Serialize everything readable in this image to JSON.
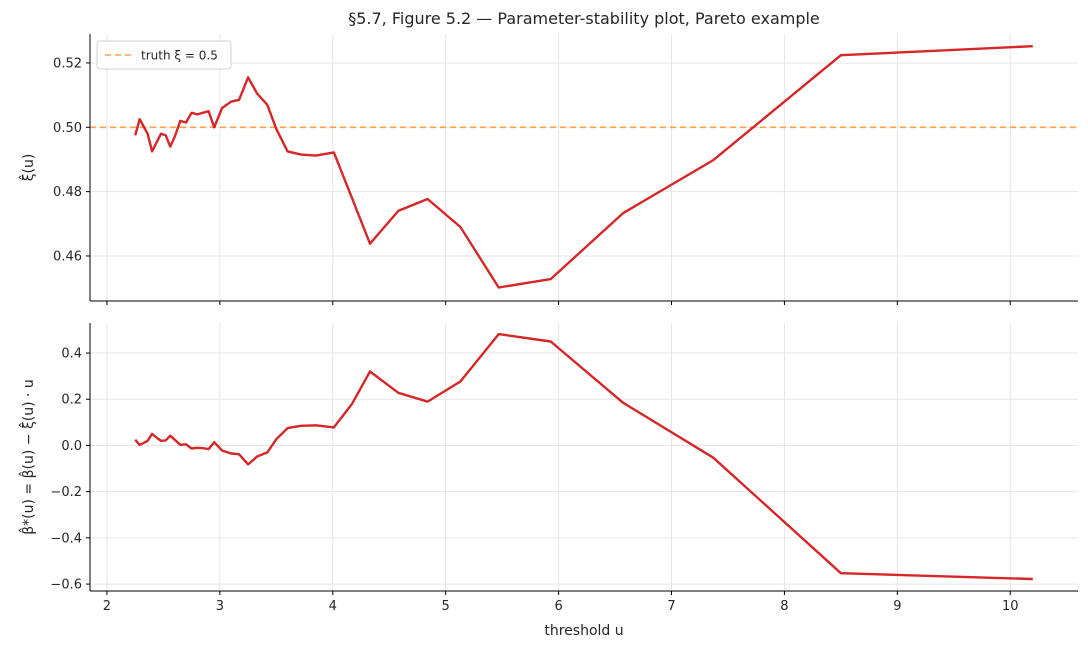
{
  "chart_data": {
    "type": "line",
    "title": "§5.7, Figure 5.2 — Parameter-stability plot, Pareto example",
    "xlabel": "threshold u",
    "xlim": [
      1.85,
      10.6
    ],
    "xticks": [
      "2",
      "3",
      "4",
      "5",
      "6",
      "7",
      "8",
      "9",
      "10"
    ],
    "line_color": "#d62728",
    "truth_color": "#ff9f4a",
    "grid": true,
    "panels": [
      {
        "ylabel": "ξ̂(u)",
        "ylim": [
          0.446,
          0.529
        ],
        "yticks": [
          "0.46",
          "0.48",
          "0.50",
          "0.52"
        ],
        "reference_line": {
          "y": 0.5,
          "label": "truth ξ = 0.5",
          "style": "dashed"
        },
        "legend_position": "top-left",
        "series": [
          {
            "x": [
              2.25,
              2.29,
              2.36,
              2.4,
              2.45,
              2.48,
              2.52,
              2.56,
              2.6,
              2.65,
              2.7,
              2.75,
              2.8,
              2.85,
              2.9,
              2.95,
              3.02,
              3.1,
              3.17,
              3.25,
              3.33,
              3.42,
              3.5,
              3.6,
              3.72,
              3.85,
              4.01,
              4.17,
              4.33,
              4.58,
              4.84,
              5.13,
              5.47,
              5.93,
              6.57,
              7.37,
              8.5,
              10.2
            ],
            "y": [
              0.4975,
              0.5025,
              0.498,
              0.4925,
              0.496,
              0.498,
              0.4975,
              0.494,
              0.497,
              0.502,
              0.5015,
              0.5045,
              0.504,
              0.5045,
              0.505,
              0.5,
              0.506,
              0.508,
              0.5085,
              0.5155,
              0.5105,
              0.507,
              0.4995,
              0.4925,
              0.4915,
              0.4912,
              0.4922,
              0.478,
              0.4638,
              0.474,
              0.4777,
              0.469,
              0.4502,
              0.4528,
              0.4733,
              0.4898,
              0.5224,
              0.5252
            ]
          }
        ]
      },
      {
        "ylabel": "β̂*(u) = β̂(u) − ξ̂(u) · u",
        "ylim": [
          -0.63,
          0.53
        ],
        "yticks": [
          "−0.6",
          "−0.4",
          "−0.2",
          "0.0",
          "0.2",
          "0.4"
        ],
        "series": [
          {
            "x": [
              2.25,
              2.29,
              2.36,
              2.4,
              2.45,
              2.48,
              2.52,
              2.56,
              2.6,
              2.65,
              2.7,
              2.75,
              2.8,
              2.85,
              2.9,
              2.95,
              3.02,
              3.1,
              3.17,
              3.25,
              3.33,
              3.42,
              3.5,
              3.6,
              3.72,
              3.85,
              4.01,
              4.17,
              4.33,
              4.58,
              4.84,
              5.13,
              5.47,
              5.93,
              6.57,
              7.37,
              8.5,
              10.2
            ],
            "y": [
              0.025,
              0.002,
              0.02,
              0.05,
              0.03,
              0.02,
              0.022,
              0.042,
              0.025,
              0.003,
              0.005,
              -0.013,
              -0.01,
              -0.012,
              -0.016,
              0.014,
              -0.022,
              -0.035,
              -0.038,
              -0.082,
              -0.048,
              -0.03,
              0.027,
              0.075,
              0.085,
              0.087,
              0.078,
              0.18,
              0.32,
              0.228,
              0.19,
              0.277,
              0.482,
              0.45,
              0.185,
              -0.053,
              -0.553,
              -0.578
            ]
          }
        ]
      }
    ]
  }
}
